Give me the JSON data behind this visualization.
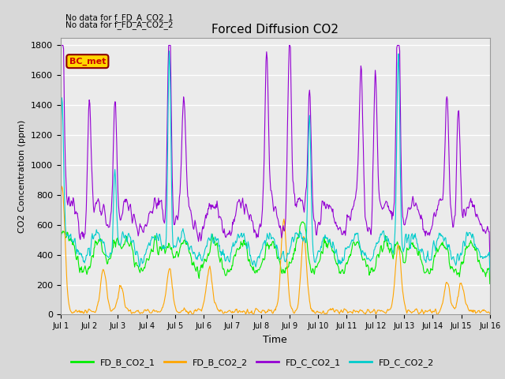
{
  "title": "Forced Diffusion CO2",
  "xlabel": "Time",
  "ylabel": "CO2 Concentration (ppm)",
  "ylim": [
    0,
    1850
  ],
  "yticks": [
    0,
    200,
    400,
    600,
    800,
    1000,
    1200,
    1400,
    1600,
    1800
  ],
  "days": 15,
  "text_no_data_1": "No data for f_FD_A_CO2_1",
  "text_no_data_2": "No data for f_FD_A_CO2_2",
  "bc_met_label": "BC_met",
  "bc_met_color": "#FFD700",
  "bc_met_text_color": "#CC0000",
  "colors": {
    "FD_B_CO2_1": "#00EE00",
    "FD_B_CO2_2": "#FFA500",
    "FD_C_CO2_1": "#9400D3",
    "FD_C_CO2_2": "#00CCCC"
  },
  "background_color": "#D8D8D8",
  "plot_bg_color": "#EBEBEB",
  "grid_color": "white"
}
